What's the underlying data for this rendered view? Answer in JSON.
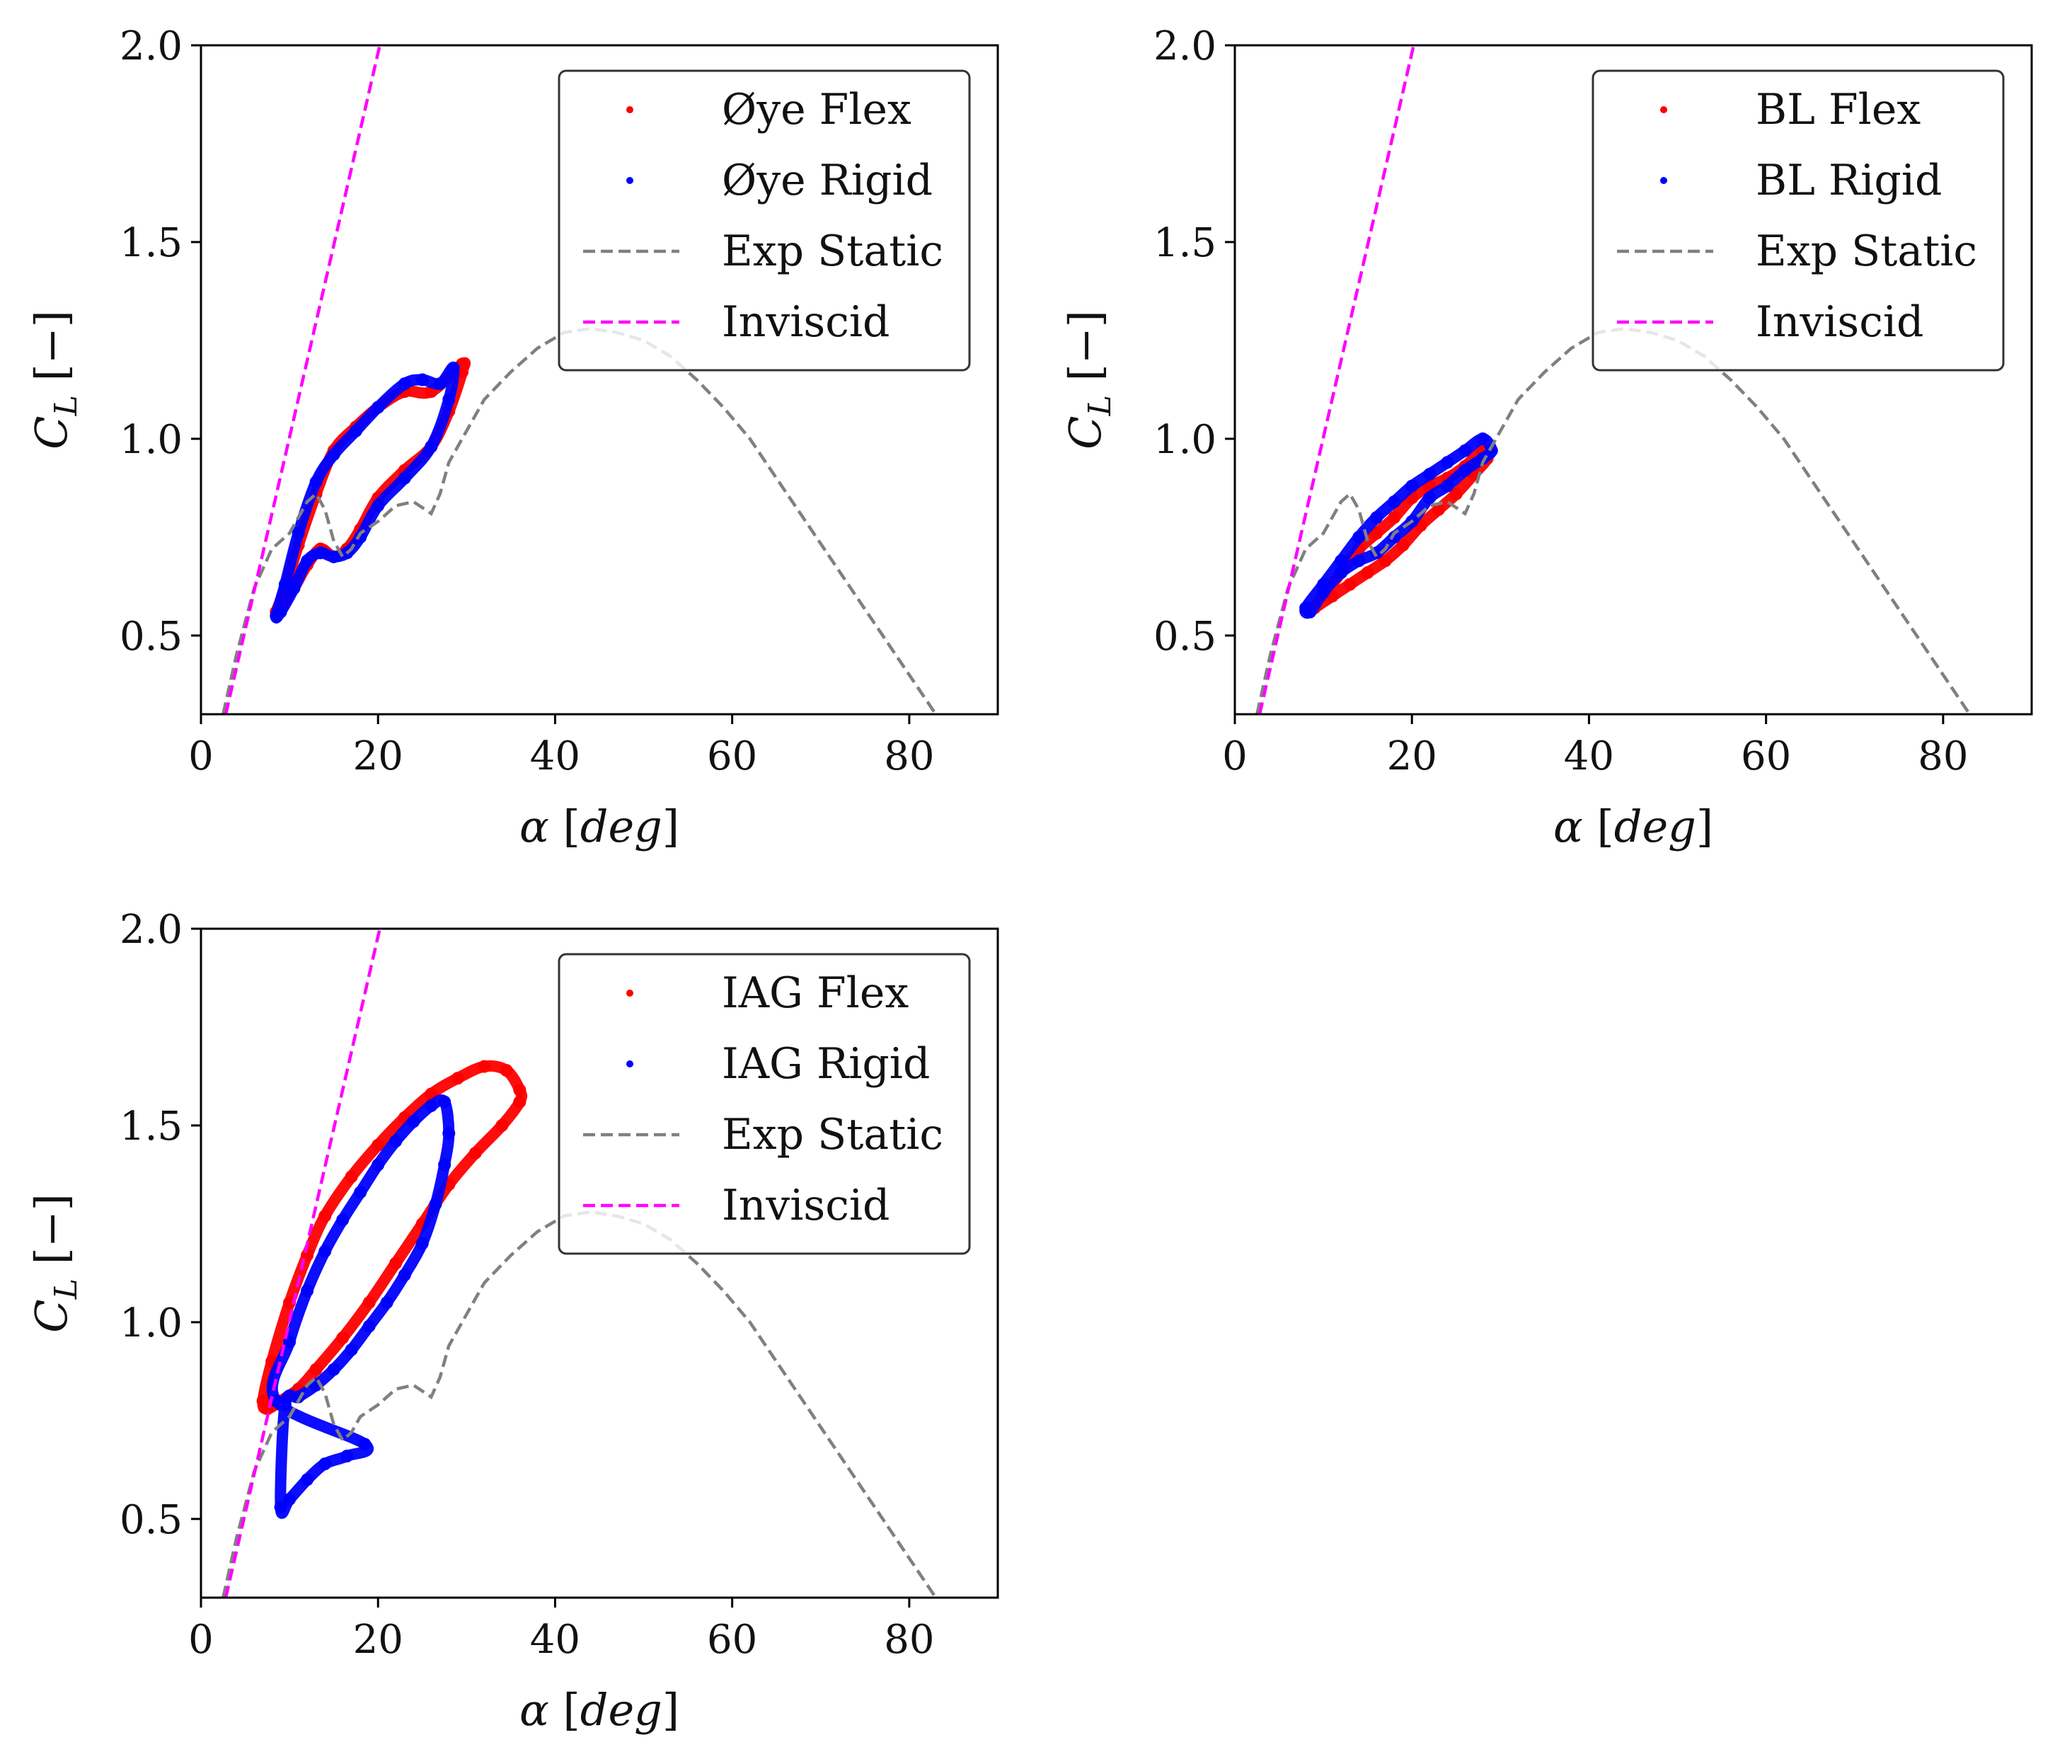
{
  "chart_data": [
    {
      "type": "scatter",
      "panel": "top-left",
      "xlabel": "α [deg]",
      "ylabel": "C_L [−]",
      "xlim": [
        0,
        90
      ],
      "ylim": [
        0.3,
        2.0
      ],
      "xticks": [
        0,
        20,
        40,
        60,
        80
      ],
      "yticks": [
        0.5,
        1.0,
        1.5,
        2.0
      ],
      "legend_position": "top-right",
      "series": [
        {
          "name": "Øye Flex",
          "kind": "points",
          "color": "#ff0000",
          "x": [
            8.5,
            9.5,
            11.0,
            13.0,
            15.0,
            17.5,
            20.0,
            23.0,
            26.0,
            29.5,
            29.5,
            28.0,
            26.0,
            23.0,
            20.0,
            18.0,
            16.5,
            15.0,
            13.5,
            12.0,
            10.5,
            9.0
          ],
          "y": [
            0.56,
            0.62,
            0.73,
            0.86,
            0.97,
            1.03,
            1.08,
            1.12,
            1.12,
            1.19,
            1.17,
            1.07,
            0.98,
            0.92,
            0.85,
            0.77,
            0.72,
            0.7,
            0.72,
            0.68,
            0.62,
            0.57
          ]
        },
        {
          "name": "Øye Rigid",
          "kind": "points",
          "color": "#0000ff",
          "x": [
            8.5,
            9.5,
            11.0,
            13.0,
            15.0,
            17.5,
            20.0,
            23.0,
            25.0,
            27.0,
            28.5,
            28.0,
            26.0,
            23.0,
            20.0,
            18.0,
            16.5,
            15.0,
            13.5,
            12.0,
            10.5,
            9.0
          ],
          "y": [
            0.55,
            0.63,
            0.76,
            0.89,
            0.96,
            1.02,
            1.08,
            1.14,
            1.15,
            1.14,
            1.18,
            1.1,
            0.98,
            0.9,
            0.83,
            0.75,
            0.71,
            0.7,
            0.71,
            0.69,
            0.62,
            0.56
          ]
        },
        {
          "name": "Exp Static",
          "kind": "dashed-line",
          "color": "#808080",
          "x": [
            2.5,
            4.0,
            6.0,
            8.0,
            10.0,
            12.0,
            13.0,
            14.0,
            15.0,
            16.0,
            17.0,
            18.0,
            20.0,
            22.0,
            24.0,
            26.0,
            27.0,
            28.0,
            30.0,
            32.0,
            35.0,
            38.0,
            41.0,
            44.0,
            47.0,
            50.0,
            53.0,
            56.0,
            59.0,
            62.0,
            65.0,
            68.0,
            71.0,
            74.0,
            77.0,
            80.0,
            83.0
          ],
          "y": [
            0.3,
            0.45,
            0.62,
            0.72,
            0.76,
            0.84,
            0.86,
            0.82,
            0.74,
            0.7,
            0.72,
            0.76,
            0.79,
            0.83,
            0.84,
            0.81,
            0.86,
            0.94,
            1.02,
            1.1,
            1.17,
            1.23,
            1.27,
            1.28,
            1.27,
            1.25,
            1.21,
            1.15,
            1.08,
            1.0,
            0.9,
            0.8,
            0.7,
            0.6,
            0.5,
            0.4,
            0.3
          ]
        },
        {
          "name": "Inviscid",
          "kind": "dashed-line",
          "color": "#ff00ff",
          "x": [
            2.8,
            20.2
          ],
          "y": [
            0.3,
            2.0
          ]
        }
      ]
    },
    {
      "type": "scatter",
      "panel": "top-right",
      "xlabel": "α [deg]",
      "ylabel": "C_L [−]",
      "xlim": [
        0,
        90
      ],
      "ylim": [
        0.3,
        2.0
      ],
      "xticks": [
        0,
        20,
        40,
        60,
        80
      ],
      "yticks": [
        0.5,
        1.0,
        1.5,
        2.0
      ],
      "legend_position": "top-right",
      "series": [
        {
          "name": "BL Flex",
          "kind": "points",
          "color": "#ff0000",
          "x": [
            8.5,
            10.0,
            12.0,
            14.0,
            16.0,
            18.0,
            20.0,
            22.0,
            24.0,
            26.0,
            28.0,
            28.5,
            27.0,
            25.0,
            23.0,
            21.0,
            19.0,
            17.0,
            15.0,
            13.0,
            11.0,
            9.0
          ],
          "y": [
            0.56,
            0.6,
            0.66,
            0.72,
            0.76,
            0.8,
            0.85,
            0.88,
            0.9,
            0.93,
            0.97,
            0.95,
            0.91,
            0.86,
            0.82,
            0.78,
            0.73,
            0.69,
            0.66,
            0.63,
            0.6,
            0.57
          ]
        },
        {
          "name": "BL Rigid",
          "kind": "points",
          "color": "#0000ff",
          "x": [
            8.0,
            10.0,
            12.0,
            14.0,
            16.0,
            18.0,
            20.0,
            22.0,
            24.0,
            26.0,
            28.0,
            29.0,
            28.0,
            26.0,
            24.0,
            22.0,
            20.0,
            18.0,
            16.0,
            14.0,
            12.0,
            10.0,
            8.5
          ],
          "y": [
            0.57,
            0.63,
            0.69,
            0.75,
            0.8,
            0.84,
            0.88,
            0.91,
            0.94,
            0.97,
            1.0,
            0.97,
            0.95,
            0.92,
            0.88,
            0.85,
            0.79,
            0.75,
            0.71,
            0.69,
            0.66,
            0.61,
            0.56
          ]
        },
        {
          "name": "Exp Static",
          "kind": "dashed-line",
          "color": "#808080",
          "x": [
            2.5,
            4.0,
            6.0,
            8.0,
            10.0,
            12.0,
            13.0,
            14.0,
            15.0,
            16.0,
            17.0,
            18.0,
            20.0,
            22.0,
            24.0,
            26.0,
            27.0,
            28.0,
            30.0,
            32.0,
            35.0,
            38.0,
            41.0,
            44.0,
            47.0,
            50.0,
            53.0,
            56.0,
            59.0,
            62.0,
            65.0,
            68.0,
            71.0,
            74.0,
            77.0,
            80.0,
            83.0
          ],
          "y": [
            0.3,
            0.45,
            0.62,
            0.72,
            0.76,
            0.84,
            0.86,
            0.82,
            0.74,
            0.7,
            0.72,
            0.76,
            0.79,
            0.83,
            0.84,
            0.81,
            0.86,
            0.94,
            1.02,
            1.1,
            1.17,
            1.23,
            1.27,
            1.28,
            1.27,
            1.25,
            1.21,
            1.15,
            1.08,
            1.0,
            0.9,
            0.8,
            0.7,
            0.6,
            0.5,
            0.4,
            0.3
          ]
        },
        {
          "name": "Inviscid",
          "kind": "dashed-line",
          "color": "#ff00ff",
          "x": [
            2.8,
            20.2
          ],
          "y": [
            0.3,
            2.0
          ]
        }
      ]
    },
    {
      "type": "scatter",
      "panel": "bottom-left",
      "xlabel": "α [deg]",
      "ylabel": "C_L [−]",
      "xlim": [
        0,
        90
      ],
      "ylim": [
        0.3,
        2.0
      ],
      "xticks": [
        0,
        20,
        40,
        60,
        80
      ],
      "yticks": [
        0.5,
        1.0,
        1.5,
        2.0
      ],
      "legend_position": "top-right",
      "series": [
        {
          "name": "IAG Flex",
          "kind": "points",
          "color": "#ff0000",
          "x": [
            7.0,
            8.0,
            10.0,
            12.0,
            14.0,
            17.0,
            20.0,
            23.0,
            26.0,
            29.0,
            32.0,
            34.5,
            36.0,
            36.0,
            34.0,
            31.0,
            28.0,
            25.0,
            22.0,
            19.0,
            16.0,
            13.0,
            11.0,
            9.0,
            7.5
          ],
          "y": [
            0.8,
            0.9,
            1.05,
            1.17,
            1.27,
            1.37,
            1.45,
            1.52,
            1.58,
            1.62,
            1.65,
            1.64,
            1.59,
            1.56,
            1.5,
            1.43,
            1.35,
            1.25,
            1.15,
            1.05,
            0.96,
            0.88,
            0.83,
            0.8,
            0.78
          ]
        },
        {
          "name": "IAG Rigid",
          "kind": "points",
          "color": "#0000ff",
          "x": [
            8.5,
            10.0,
            12.0,
            14.0,
            16.0,
            18.0,
            20.0,
            22.0,
            24.0,
            26.0,
            27.5,
            28.0,
            27.5,
            26.5,
            25.0,
            23.0,
            21.0,
            19.0,
            17.0,
            15.0,
            13.0,
            11.0,
            9.5,
            9.0,
            10.0,
            12.0,
            14.0,
            16.5,
            18.5
          ],
          "y": [
            0.8,
            0.95,
            1.08,
            1.18,
            1.26,
            1.33,
            1.4,
            1.46,
            1.51,
            1.55,
            1.56,
            1.48,
            1.4,
            1.3,
            1.2,
            1.12,
            1.05,
            0.99,
            0.93,
            0.88,
            0.84,
            0.81,
            0.79,
            0.53,
            0.55,
            0.6,
            0.64,
            0.66,
            0.69
          ]
        },
        {
          "name": "Exp Static",
          "kind": "dashed-line",
          "color": "#808080",
          "x": [
            2.5,
            4.0,
            6.0,
            8.0,
            10.0,
            12.0,
            13.0,
            14.0,
            15.0,
            16.0,
            17.0,
            18.0,
            20.0,
            22.0,
            24.0,
            26.0,
            27.0,
            28.0,
            30.0,
            32.0,
            35.0,
            38.0,
            41.0,
            44.0,
            47.0,
            50.0,
            53.0,
            56.0,
            59.0,
            62.0,
            65.0,
            68.0,
            71.0,
            74.0,
            77.0,
            80.0,
            83.0
          ],
          "y": [
            0.3,
            0.45,
            0.62,
            0.72,
            0.76,
            0.84,
            0.86,
            0.82,
            0.74,
            0.7,
            0.72,
            0.76,
            0.79,
            0.83,
            0.84,
            0.81,
            0.86,
            0.94,
            1.02,
            1.1,
            1.17,
            1.23,
            1.27,
            1.28,
            1.27,
            1.25,
            1.21,
            1.15,
            1.08,
            1.0,
            0.9,
            0.8,
            0.7,
            0.6,
            0.5,
            0.4,
            0.3
          ]
        },
        {
          "name": "Inviscid",
          "kind": "dashed-line",
          "color": "#ff00ff",
          "x": [
            2.8,
            20.2
          ],
          "y": [
            0.3,
            2.0
          ]
        }
      ]
    }
  ]
}
